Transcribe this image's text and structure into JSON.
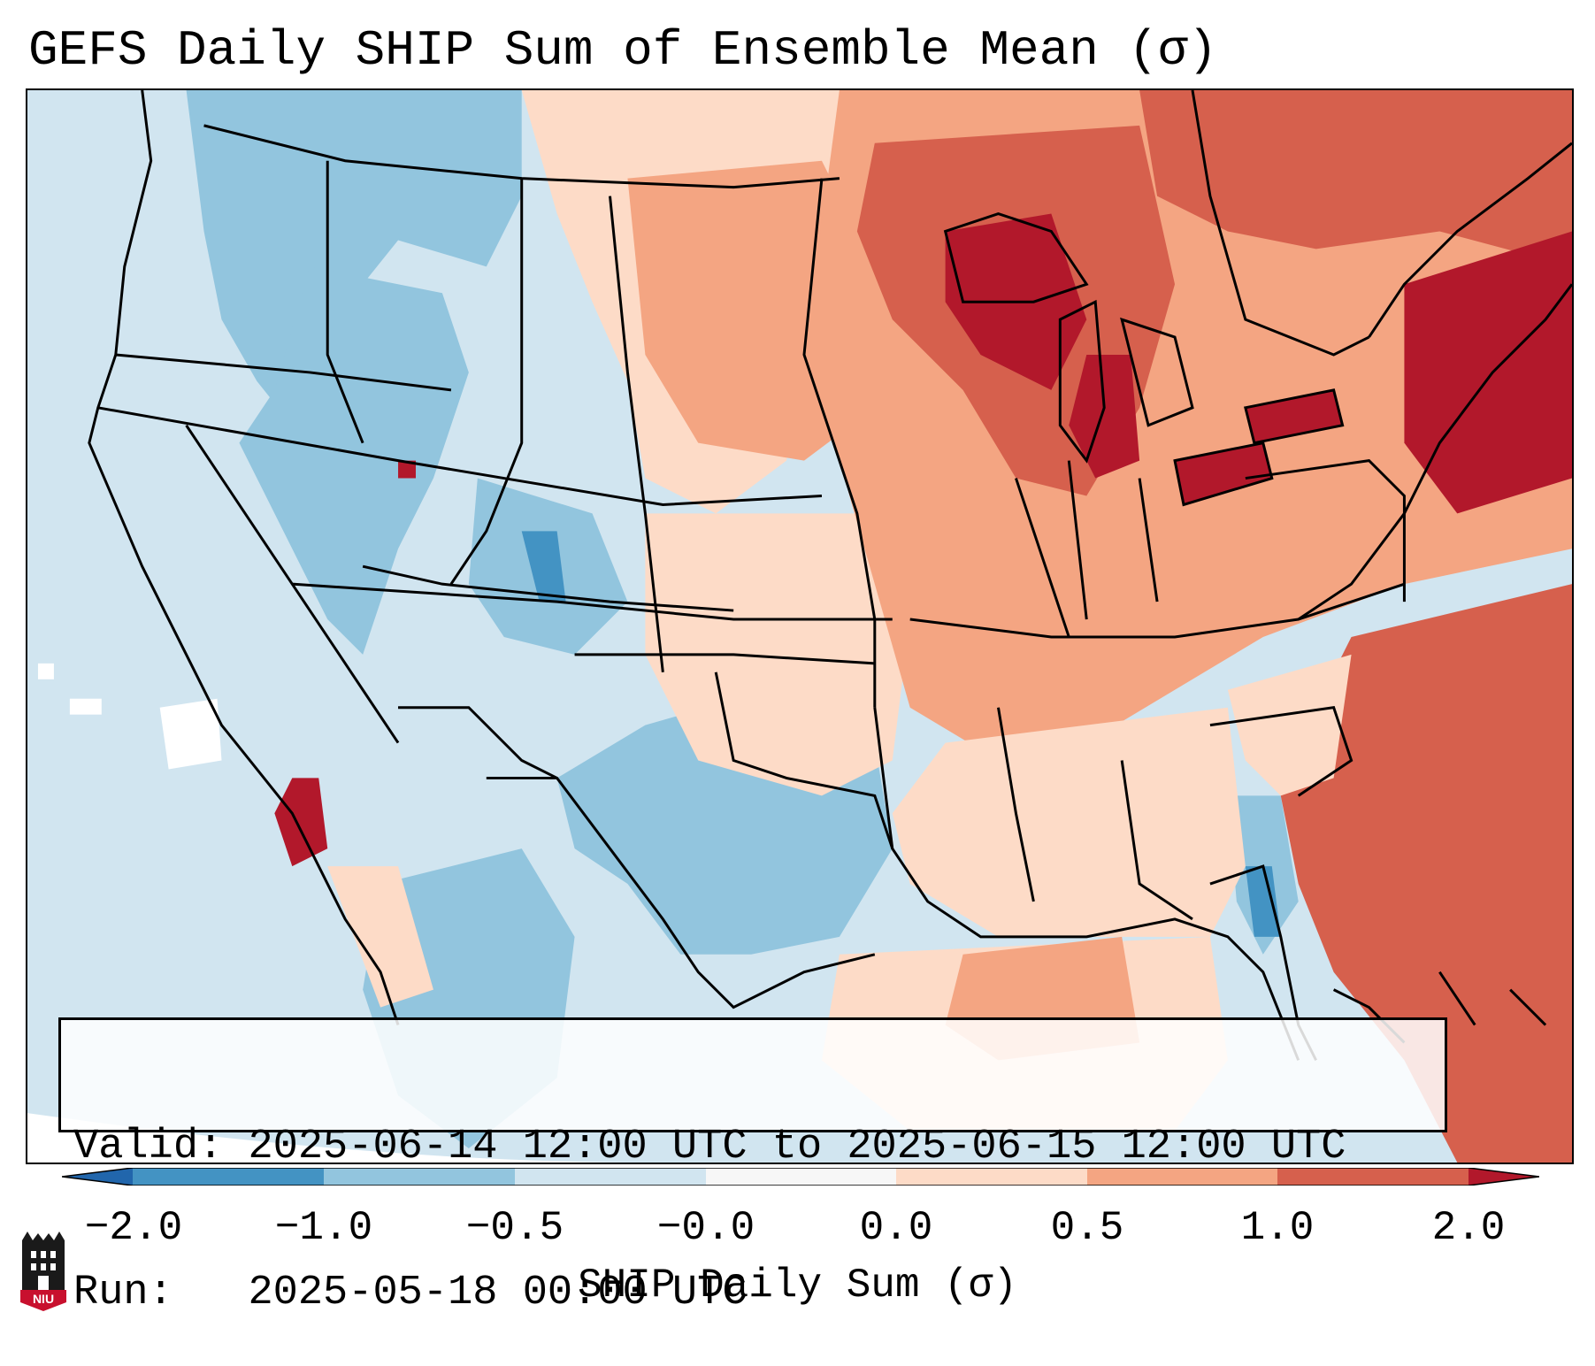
{
  "title": "GEFS Daily SHIP Sum of Ensemble Mean (σ)",
  "info": {
    "valid_label": "Valid: ",
    "valid_value": "2025-06-14 12:00 UTC to 2025-06-15 12:00 UTC",
    "run_label": "Run:   ",
    "run_value": "2025-05-18 00:00 UTC"
  },
  "colorbar": {
    "title": "SHIP Daily Sum (σ)",
    "tick_labels": [
      "−2.0",
      "−1.0",
      "−0.5",
      "−0.0",
      "0.0",
      "0.5",
      "1.0",
      "2.0"
    ],
    "bins": [
      {
        "range": "< -2.0",
        "color": "#2166ac"
      },
      {
        "range": "-2.0 to -1.0",
        "color": "#4393c3"
      },
      {
        "range": "-1.0 to -0.5",
        "color": "#92c5de"
      },
      {
        "range": "-0.5 to -0.0",
        "color": "#d1e5f0"
      },
      {
        "range": "0.0",
        "color": "#f7f7f7"
      },
      {
        "range": "0.0 to 0.5",
        "color": "#fddbc7"
      },
      {
        "range": "0.5 to 1.0",
        "color": "#f4a582"
      },
      {
        "range": "1.0 to 2.0",
        "color": "#d6604d"
      },
      {
        "range": "> 2.0",
        "color": "#b2182b"
      }
    ]
  },
  "logo": {
    "text": "NIU",
    "icon": "niu-logo-icon"
  },
  "map": {
    "region": "Continental United States",
    "colors": {
      "strong_negative": "#4393c3",
      "negative": "#92c5de",
      "weak_negative": "#d1e5f0",
      "weak_positive": "#fddbc7",
      "positive": "#f4a582",
      "strong_positive": "#d6604d",
      "extreme_positive": "#b2182b"
    }
  }
}
